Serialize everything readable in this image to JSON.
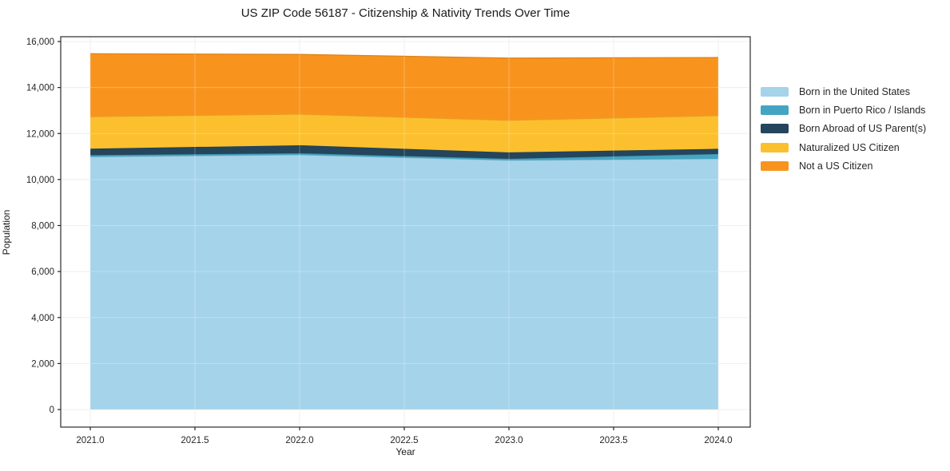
{
  "chart_data": {
    "type": "area",
    "stacked": true,
    "title": "US ZIP Code 56187 - Citizenship & Nativity Trends Over Time",
    "xlabel": "Year",
    "ylabel": "Population",
    "x": [
      2021,
      2022,
      2023,
      2024
    ],
    "series": [
      {
        "name": "Born in the United States",
        "color": "#a5d3e9",
        "values": [
          10985,
          11070,
          10830,
          10900
        ]
      },
      {
        "name": "Born in Puerto Rico / Islands",
        "color": "#44a5c2",
        "values": [
          75,
          70,
          70,
          210
        ]
      },
      {
        "name": "Born Abroad of US Parent(s)",
        "color": "#24455c",
        "values": [
          280,
          350,
          280,
          225
        ]
      },
      {
        "name": "Naturalized US Citizen",
        "color": "#fcc02e",
        "values": [
          1390,
          1350,
          1390,
          1440
        ]
      },
      {
        "name": "Not a US Citizen",
        "color": "#f8941e",
        "values": [
          2740,
          2600,
          2710,
          2530
        ]
      }
    ],
    "totals": [
      15470,
      15440,
      15280,
      15305
    ],
    "x_ticks": [
      "2021.0",
      "2021.5",
      "2022.0",
      "2022.5",
      "2023.0",
      "2023.5",
      "2024.0"
    ],
    "y_ticks": [
      "0",
      "2,000",
      "4,000",
      "6,000",
      "8,000",
      "10,000",
      "12,000",
      "14,000",
      "16,000"
    ],
    "xlim": [
      2020.86,
      2024.15
    ],
    "ylim": [
      -760,
      16210
    ],
    "grid": true,
    "legend_position": "right of plot, no frame",
    "tick_color": "#262626",
    "spine_color": "#2b2b2b",
    "grid_color_margin": "#e9e9e9",
    "grid_color_over_fill": "rgba(255,255,255,0.28)"
  }
}
